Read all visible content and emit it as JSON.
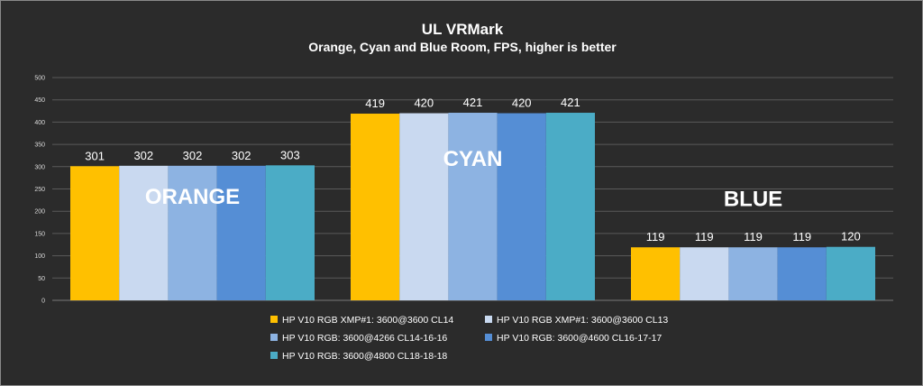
{
  "chart_data": {
    "type": "bar",
    "title": "UL VRMark",
    "subtitle": "Orange, Cyan and Blue Room, FPS, higher is better",
    "categories": [
      "ORANGE",
      "CYAN",
      "BLUE"
    ],
    "ylim": [
      0,
      500
    ],
    "yticks": [
      0,
      50,
      100,
      150,
      200,
      250,
      300,
      350,
      400,
      450,
      500
    ],
    "grid": true,
    "legend_position": "bottom",
    "series": [
      {
        "name": "HP V10 RGB XMP#1: 3600@3600 CL14",
        "color": "#ffc000",
        "values": [
          301,
          419,
          119
        ]
      },
      {
        "name": "HP V10 RGB XMP#1: 3600@3600 CL13",
        "color": "#c9d9f0",
        "values": [
          302,
          420,
          119
        ]
      },
      {
        "name": "HP V10 RGB: 3600@4266 CL14-16-16",
        "color": "#8db3e2",
        "values": [
          302,
          421,
          119
        ]
      },
      {
        "name": "HP V10 RGB: 3600@4600 CL16-17-17",
        "color": "#558ed5",
        "values": [
          302,
          420,
          119
        ]
      },
      {
        "name": "HP V10 RGB: 3600@4800 CL18-18-18",
        "color": "#4bacc6",
        "values": [
          303,
          421,
          120
        ]
      }
    ]
  }
}
